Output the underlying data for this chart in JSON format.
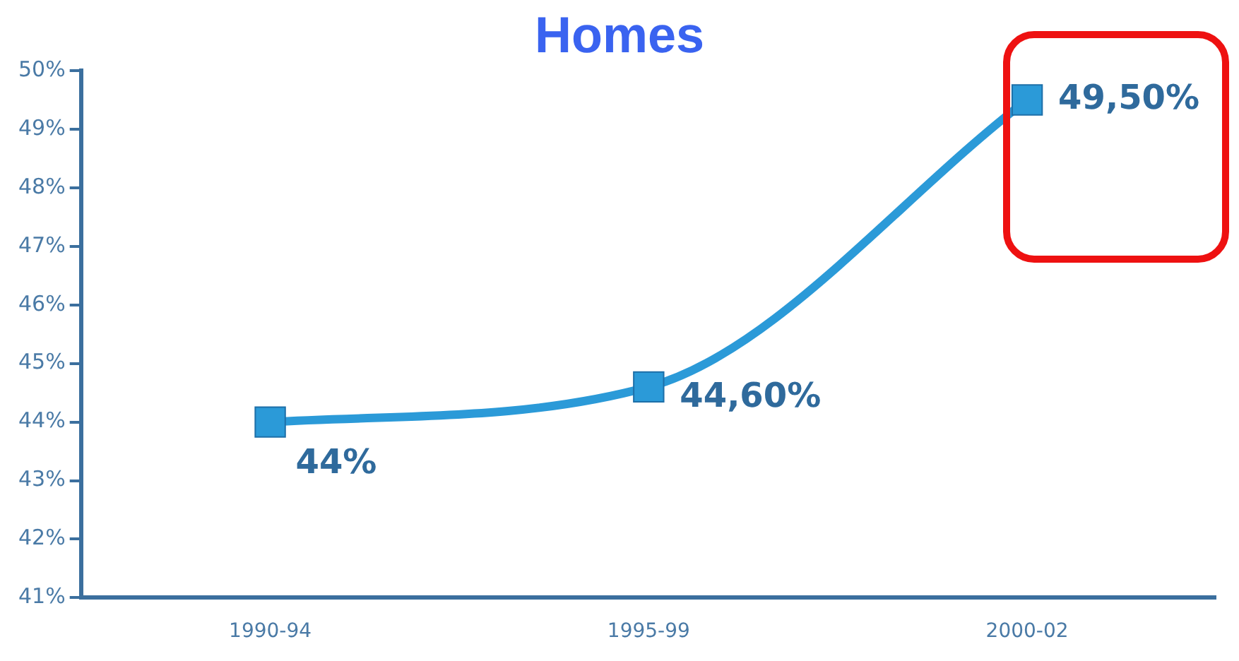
{
  "chart_data": {
    "type": "line",
    "title": "Homes",
    "categories": [
      "1990-94",
      "1995-99",
      "2000-02"
    ],
    "series": [
      {
        "color": "#2b9ad8",
        "values": [
          44,
          44.6,
          49.5
        ],
        "value_labels": [
          "44%",
          "44,60%",
          "49,50%"
        ]
      }
    ],
    "ylim": [
      41,
      50
    ],
    "yticks": [
      {
        "value": 41,
        "label": "41%"
      },
      {
        "value": 42,
        "label": "42%"
      },
      {
        "value": 43,
        "label": "43%"
      },
      {
        "value": 44,
        "label": "44%"
      },
      {
        "value": 45,
        "label": "45%"
      },
      {
        "value": 46,
        "label": "46%"
      },
      {
        "value": 47,
        "label": "47%"
      },
      {
        "value": 48,
        "label": "48%"
      },
      {
        "value": 49,
        "label": "49%"
      },
      {
        "value": 50,
        "label": "50%"
      }
    ],
    "grid": false,
    "legend": false,
    "marker": "square",
    "line_style": "solid"
  }
}
